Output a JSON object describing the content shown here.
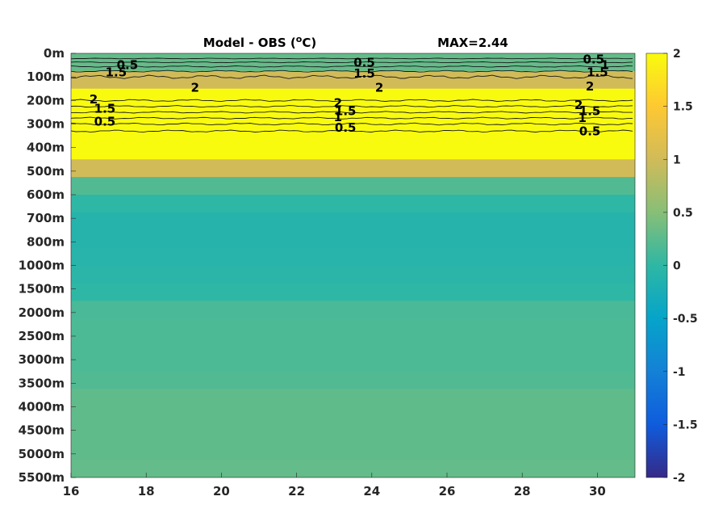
{
  "chart_data": {
    "type": "heatmap",
    "title": "Model - OBS (",
    "title_unit_sup": "o",
    "title_unit_end": "C)",
    "max_label": "MAX=2.44",
    "x_ticks": [
      16,
      18,
      20,
      22,
      24,
      26,
      28,
      30
    ],
    "xlim": [
      16,
      31
    ],
    "y_ticks": [
      "0m",
      "100m",
      "200m",
      "300m",
      "400m",
      "500m",
      "600m",
      "700m",
      "800m",
      "1000m",
      "1500m",
      "2000m",
      "2500m",
      "3000m",
      "3500m",
      "4000m",
      "4500m",
      "5000m",
      "5500m"
    ],
    "colorbar_ticks": [
      2,
      1.5,
      1,
      0.5,
      0,
      -0.5,
      -1,
      -1.5,
      -2
    ],
    "clim": [
      -2,
      2
    ],
    "colormap": "parula",
    "depth_profile": [
      0.3,
      1.0,
      2.3,
      2.4,
      2.3,
      2.2,
      1.0,
      0.2,
      0.0,
      -0.1,
      -0.1,
      -0.08,
      -0.05,
      0.0,
      0.15,
      0.17,
      0.17,
      0.17,
      0.2,
      0.28,
      0.28,
      0.28,
      0.28,
      0.3
    ],
    "contour_levels": [
      "0.5",
      "1",
      "1.5",
      "2"
    ],
    "contour_labels": [
      {
        "text": "0.5",
        "x": 17.5,
        "depth": "50m"
      },
      {
        "text": "1.5",
        "x": 17.2,
        "depth": "80m"
      },
      {
        "text": "2",
        "x": 19.3,
        "depth": "145m"
      },
      {
        "text": "0.5",
        "x": 23.8,
        "depth": "40m"
      },
      {
        "text": "1.5",
        "x": 23.8,
        "depth": "85m"
      },
      {
        "text": "2",
        "x": 24.2,
        "depth": "145m"
      },
      {
        "text": "0.5",
        "x": 29.9,
        "depth": "25m"
      },
      {
        "text": "1",
        "x": 30.2,
        "depth": "50m"
      },
      {
        "text": "1.5",
        "x": 30.0,
        "depth": "80m"
      },
      {
        "text": "2",
        "x": 29.8,
        "depth": "140m"
      },
      {
        "text": "2",
        "x": 16.6,
        "depth": "195m"
      },
      {
        "text": "1.5",
        "x": 16.9,
        "depth": "235m"
      },
      {
        "text": "0.5",
        "x": 16.9,
        "depth": "290m"
      },
      {
        "text": "2",
        "x": 23.1,
        "depth": "210m"
      },
      {
        "text": "1.5",
        "x": 23.3,
        "depth": "245m"
      },
      {
        "text": "1",
        "x": 23.1,
        "depth": "270m"
      },
      {
        "text": "0.5",
        "x": 23.3,
        "depth": "315m"
      },
      {
        "text": "2",
        "x": 29.5,
        "depth": "220m"
      },
      {
        "text": "1.5",
        "x": 29.8,
        "depth": "245m"
      },
      {
        "text": "1",
        "x": 29.6,
        "depth": "275m"
      },
      {
        "text": "0.5",
        "x": 29.8,
        "depth": "330m"
      }
    ]
  }
}
